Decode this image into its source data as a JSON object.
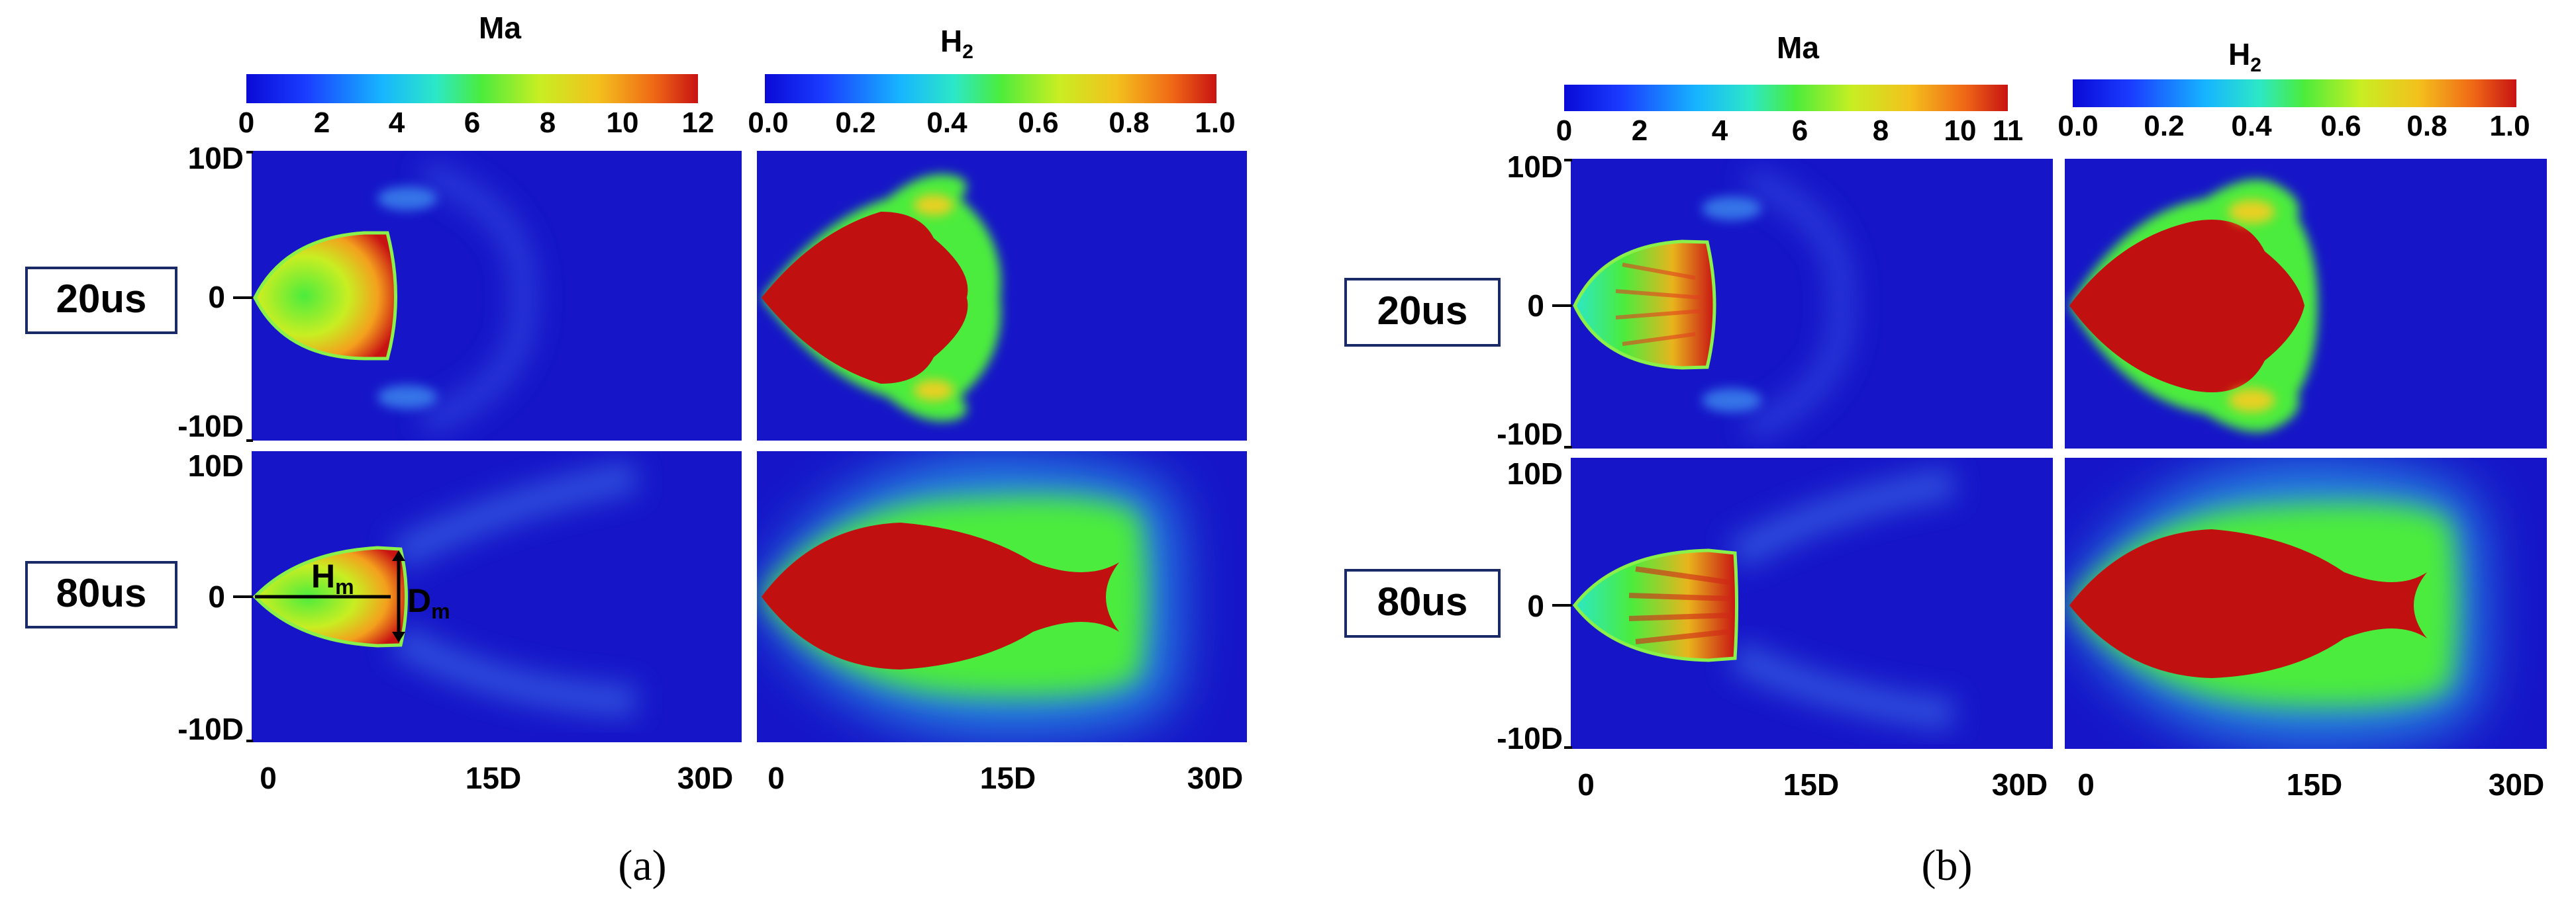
{
  "colormap": [
    "#0a0ad6",
    "#1a3cff",
    "#17b5ff",
    "#2ce8c6",
    "#4bec3d",
    "#c8ee22",
    "#f3c01d",
    "#f06a16",
    "#c81313"
  ],
  "background_color": "#1616c8",
  "panels": [
    {
      "id": "a",
      "caption": "(a)",
      "ma_colorbar": {
        "title": "Ma",
        "ticks": [
          "0",
          "2",
          "4",
          "6",
          "8",
          "10",
          "12"
        ]
      },
      "h2_colorbar": {
        "title_main": "H",
        "title_sub": "2",
        "ticks": [
          "0.0",
          "0.2",
          "0.4",
          "0.6",
          "0.8",
          "1.0"
        ]
      },
      "y_ticks": [
        "10D",
        "0",
        "-10D"
      ],
      "x_ticks_left": [
        "0",
        "15D",
        "30D"
      ],
      "x_ticks_right": [
        "0",
        "15D",
        "30D"
      ],
      "times": [
        "20us",
        "80us"
      ],
      "annotations": {
        "h_main": "H",
        "h_sub": "m",
        "d_main": "D",
        "d_sub": "m"
      }
    },
    {
      "id": "b",
      "caption": "(b)",
      "ma_colorbar": {
        "title": "Ma",
        "ticks": [
          "0",
          "2",
          "4",
          "6",
          "8",
          "10",
          "11"
        ]
      },
      "h2_colorbar": {
        "title_main": "H",
        "title_sub": "2",
        "ticks": [
          "0.0",
          "0.2",
          "0.4",
          "0.6",
          "0.8",
          "1.0"
        ]
      },
      "y_ticks": [
        "10D",
        "0",
        "-10D"
      ],
      "x_ticks_left": [
        "0",
        "15D",
        "30D"
      ],
      "x_ticks_right": [
        "0",
        "15D",
        "30D"
      ],
      "times": [
        "20us",
        "80us"
      ]
    }
  ]
}
